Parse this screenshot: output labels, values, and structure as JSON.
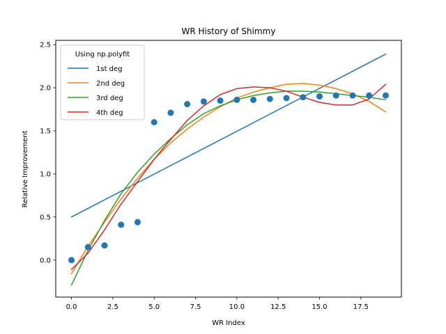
{
  "chart_data": {
    "type": "scatter",
    "title": "WR History of Shimmy",
    "xlabel": "WR Index",
    "ylabel": "Relative Improvement",
    "xlim": [
      -0.95,
      19.95
    ],
    "ylim": [
      -0.43,
      2.55
    ],
    "xticks": [
      0,
      2.5,
      5,
      7.5,
      10,
      12.5,
      15,
      17.5
    ],
    "xtick_labels": [
      "0.0",
      "2.5",
      "5.0",
      "7.5",
      "10.0",
      "12.5",
      "15.0",
      "17.5"
    ],
    "yticks": [
      0,
      0.5,
      1,
      1.5,
      2,
      2.5
    ],
    "ytick_labels": [
      "0.0",
      "0.5",
      "1.0",
      "1.5",
      "2.0",
      "2.5"
    ],
    "grid": false,
    "legend": {
      "title": "Using np.polyfit",
      "placement": "top-left",
      "entries": [
        "1st deg",
        "2nd deg",
        "3rd deg",
        "4th deg"
      ]
    },
    "points": {
      "color": "#1f77b4",
      "x": [
        0,
        1,
        2,
        3,
        4,
        5,
        6,
        7,
        8,
        9,
        10,
        11,
        12,
        13,
        14,
        15,
        16,
        17,
        18,
        19
      ],
      "y": [
        0.0,
        0.15,
        0.17,
        0.41,
        0.44,
        1.6,
        1.71,
        1.81,
        1.84,
        1.85,
        1.86,
        1.86,
        1.87,
        1.88,
        1.89,
        1.9,
        1.91,
        1.91,
        1.91,
        1.91
      ]
    },
    "series": [
      {
        "name": "1st deg",
        "color": "#1f77b4",
        "x": [
          0,
          19
        ],
        "y": [
          0.5,
          2.39
        ]
      },
      {
        "name": "2nd deg",
        "color": "#ff7f0e",
        "x": [
          0,
          1,
          2,
          3,
          4,
          5,
          6,
          7,
          8,
          9,
          10,
          11,
          12,
          13,
          14,
          15,
          16,
          17,
          18,
          19
        ],
        "y": [
          -0.16,
          0.16,
          0.44,
          0.71,
          0.95,
          1.17,
          1.36,
          1.52,
          1.66,
          1.78,
          1.88,
          1.95,
          2.0,
          2.04,
          2.05,
          2.03,
          1.99,
          1.93,
          1.84,
          1.72
        ]
      },
      {
        "name": "3rd deg",
        "color": "#2ca02c",
        "x": [
          0,
          1,
          2,
          3,
          4,
          5,
          6,
          7,
          8,
          9,
          10,
          11,
          12,
          13,
          14,
          15,
          16,
          17,
          18,
          19
        ],
        "y": [
          -0.29,
          0.11,
          0.46,
          0.77,
          1.02,
          1.23,
          1.41,
          1.57,
          1.7,
          1.79,
          1.86,
          1.91,
          1.94,
          1.96,
          1.96,
          1.95,
          1.93,
          1.91,
          1.89,
          1.86
        ]
      },
      {
        "name": "4th deg",
        "color": "#d62728",
        "x": [
          0,
          1,
          2,
          3,
          4,
          5,
          6,
          7,
          8,
          9,
          10,
          11,
          12,
          13,
          14,
          15,
          16,
          17,
          18,
          19
        ],
        "y": [
          -0.11,
          0.08,
          0.35,
          0.65,
          0.91,
          1.17,
          1.4,
          1.62,
          1.79,
          1.92,
          1.99,
          2.01,
          2.0,
          1.96,
          1.89,
          1.83,
          1.8,
          1.8,
          1.87,
          2.04
        ]
      }
    ]
  }
}
